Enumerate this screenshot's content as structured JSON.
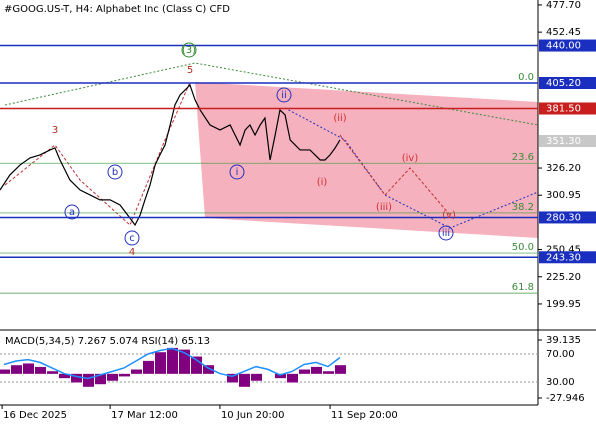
{
  "header": "#GOOG.US-T, H4:  Alphabet Inc (Class C) CFD",
  "chart_data": [
    {
      "type": "line",
      "color": "#000000",
      "xlim": [
        0,
        179.3
      ],
      "ylim": [
        177.6,
        482.3
      ],
      "x": [
        0,
        3.3,
        6.7,
        10,
        13.3,
        16.7,
        18.3,
        20,
        23.3,
        26.7,
        30,
        33.3,
        36.7,
        40,
        43.3,
        45,
        46.7,
        48.3,
        50,
        51.7,
        53.3,
        55,
        56.7,
        58.3,
        60,
        61.7,
        63.3,
        65,
        66.7,
        70,
        73.3,
        76.7,
        80,
        81.7,
        83.3,
        85,
        86.7,
        88.3,
        90,
        91.7,
        93.3,
        95,
        96.7,
        100,
        103.3,
        106.7,
        108.3,
        110,
        111.7,
        113.3
      ],
      "values": [
        305.8,
        319.8,
        329.1,
        335.6,
        338.4,
        343,
        344.9,
        333.7,
        315.1,
        305.8,
        301.2,
        296.6,
        296.6,
        291.9,
        279.8,
        273.3,
        282.6,
        296.6,
        310.5,
        329.1,
        338.4,
        347.6,
        366.2,
        384.8,
        394.1,
        398.7,
        403.4,
        389.5,
        380.2,
        366.2,
        361.6,
        366.2,
        347.6,
        361.6,
        366.2,
        356.9,
        366.2,
        372.7,
        333.7,
        356.9,
        380.2,
        375.6,
        352.3,
        343,
        343,
        333.7,
        333.7,
        338.4,
        344.9,
        352.3
      ],
      "yticks": [
        {
          "value": 477.7,
          "label": "477.70"
        },
        {
          "value": 452.45,
          "label": "452.45"
        },
        {
          "value": 326.2,
          "label": "326.20"
        },
        {
          "value": 300.95,
          "label": "300.95"
        },
        {
          "value": 250.45,
          "label": "250.45"
        },
        {
          "value": 225.2,
          "label": "225.20"
        },
        {
          "value": 199.95,
          "label": "199.95"
        }
      ],
      "xticks": [
        {
          "value": 0.7,
          "label": "16 Dec 2025"
        },
        {
          "value": 36.7,
          "label": "17 Mar 12:00"
        },
        {
          "value": 73.3,
          "label": "10 Jun 20:00"
        },
        {
          "value": 110,
          "label": "11 Sep 20:00"
        }
      ],
      "levels": [
        {
          "price": 440,
          "label": "440.00",
          "color": "#1a2fc0"
        },
        {
          "price": 405.2,
          "label": "405.20",
          "color": "#1a2fc0"
        },
        {
          "price": 381.5,
          "label": "381.50",
          "color": "#c81e1e"
        },
        {
          "price": 351.3,
          "label": "351.30",
          "color": "#c8c8c8"
        },
        {
          "price": 280.3,
          "label": "280.30",
          "color": "#1a2fc0"
        },
        {
          "price": 243.3,
          "label": "243.30",
          "color": "#1a2fc0"
        }
      ],
      "fib_levels": [
        {
          "label": "0.0",
          "price": 405.2
        },
        {
          "label": "23.6",
          "price": 330.7
        },
        {
          "label": "38.2",
          "price": 284.5
        },
        {
          "label": "50.0",
          "price": 247.2
        },
        {
          "label": "61.8",
          "price": 210
        }
      ],
      "waves": [
        "(3)",
        "5",
        "3",
        "a",
        "b",
        "c",
        "4",
        "ii",
        "i",
        "(ii)",
        "(i)",
        "(iv)",
        "(iii)",
        "(v)",
        "iii"
      ]
    },
    {
      "type": "bar",
      "title": "MACD(5,34,5) 7.267 5.074 RSI(14) 65.13",
      "color": "#800080",
      "rsi_color": "#1e90ff",
      "ylim": [
        -27.946,
        39.135
      ],
      "yticks": [
        39.135,
        -27.946
      ],
      "rsi_ylim": [
        7.1,
        90
      ],
      "rsi_ticks": [
        {
          "value": 70,
          "label": "70.00"
        },
        {
          "value": 30,
          "label": "30.00"
        }
      ],
      "x": [
        0,
        4,
        8,
        12,
        16,
        20,
        24,
        28,
        32,
        36,
        40,
        44,
        48,
        52,
        56,
        60,
        64,
        68,
        72,
        76,
        80,
        84,
        88,
        92,
        96,
        100,
        104,
        108,
        112
      ],
      "values": [
        5,
        10,
        12,
        8,
        3,
        -5,
        -10,
        -15,
        -12,
        -8,
        -3,
        5,
        15,
        25,
        30,
        28,
        20,
        10,
        0,
        -10,
        -15,
        -8,
        0,
        -5,
        -10,
        5,
        8,
        3,
        10
      ],
      "rsi": [
        55,
        60,
        62,
        58,
        50,
        42,
        38,
        35,
        40,
        45,
        50,
        60,
        70,
        75,
        78,
        72,
        62,
        50,
        42,
        38,
        45,
        52,
        48,
        40,
        45,
        55,
        58,
        52,
        65
      ]
    }
  ]
}
